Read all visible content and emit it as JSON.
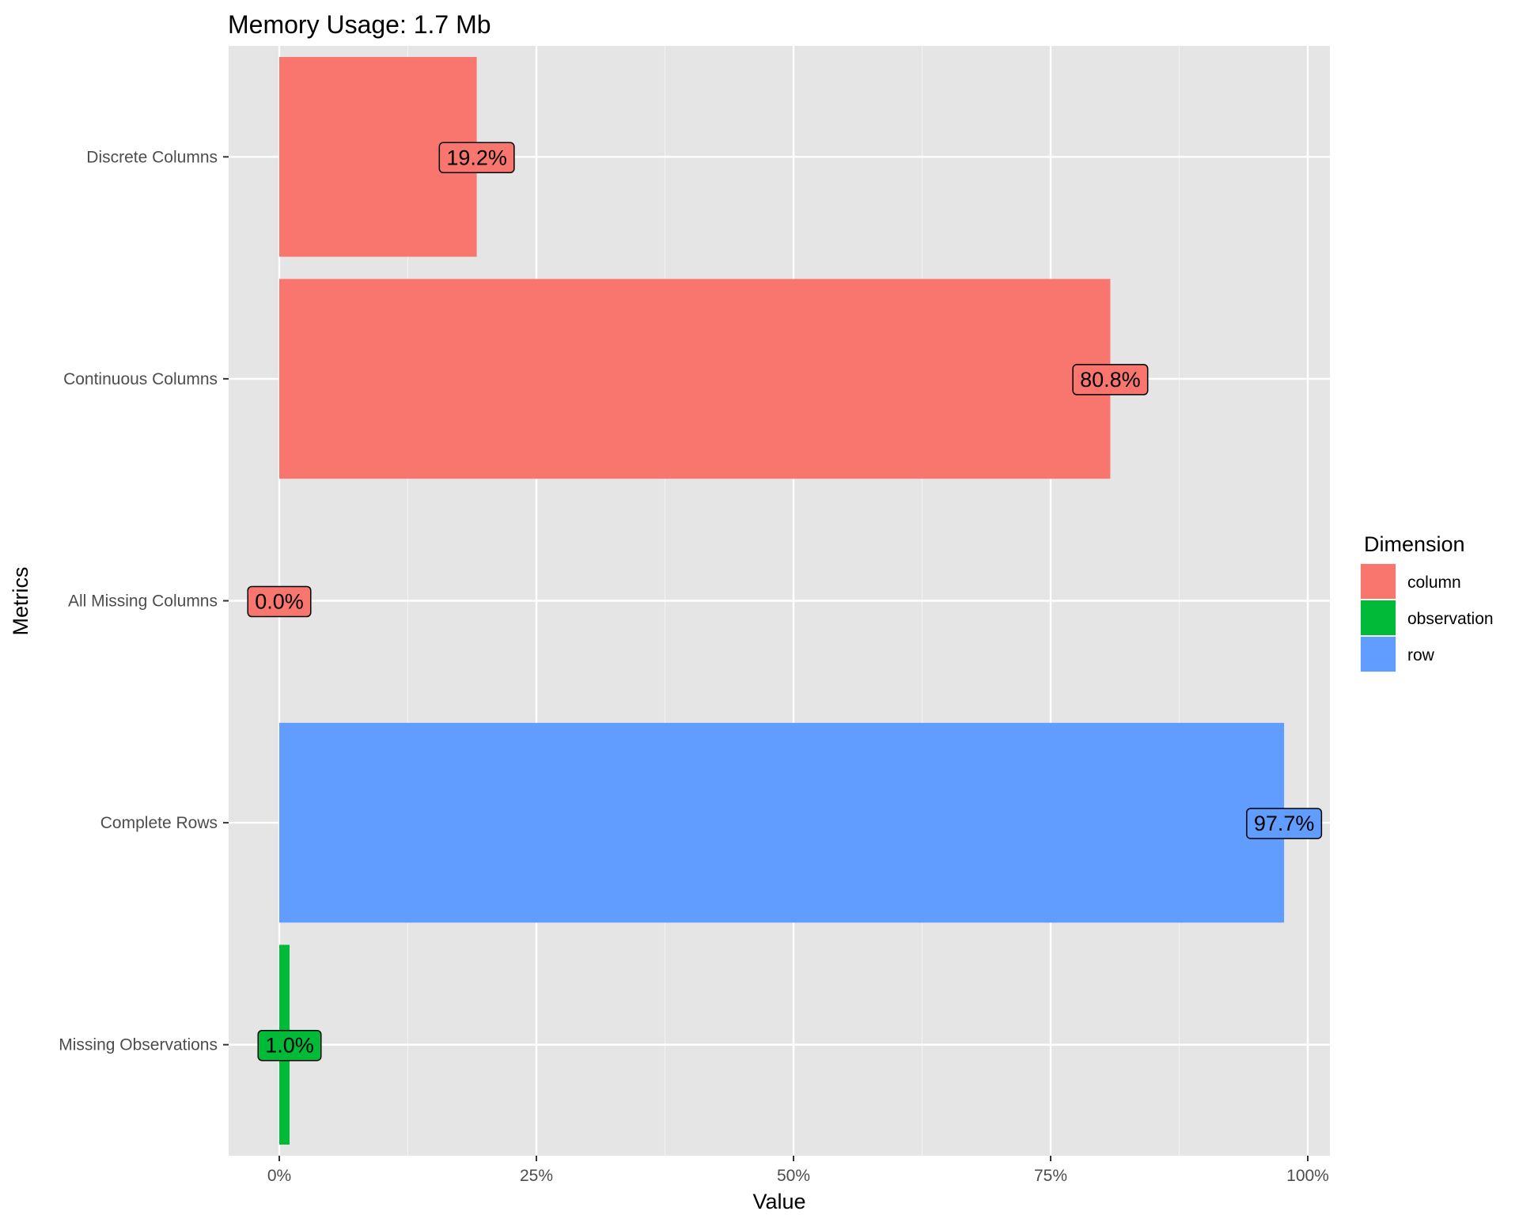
{
  "chart_data": {
    "type": "bar",
    "orientation": "horizontal",
    "title": "Memory Usage: 1.7 Mb",
    "xlabel": "Value",
    "ylabel": "Metrics",
    "xlim": [
      -0.05,
      1.03
    ],
    "x_ticks": [
      {
        "value": 0,
        "label": "0%"
      },
      {
        "value": 0.25,
        "label": "25%"
      },
      {
        "value": 0.5,
        "label": "50%"
      },
      {
        "value": 0.75,
        "label": "75%"
      },
      {
        "value": 1.0,
        "label": "100%"
      }
    ],
    "grid": true,
    "legend_position": "right",
    "legend": {
      "title": "Dimension",
      "entries": [
        {
          "name": "column",
          "color": "#F8766D"
        },
        {
          "name": "observation",
          "color": "#00BA38"
        },
        {
          "name": "row",
          "color": "#619CFF"
        }
      ]
    },
    "categories": [
      "Discrete Columns",
      "Continuous Columns",
      "All Missing Columns",
      "Complete Rows",
      "Missing Observations"
    ],
    "values": [
      0.192,
      0.808,
      0.0,
      0.977,
      0.01
    ],
    "labels": [
      "19.2%",
      "80.8%",
      "0.0%",
      "97.7%",
      "1.0%"
    ],
    "dimensions": [
      "column",
      "column",
      "column",
      "row",
      "observation"
    ]
  }
}
